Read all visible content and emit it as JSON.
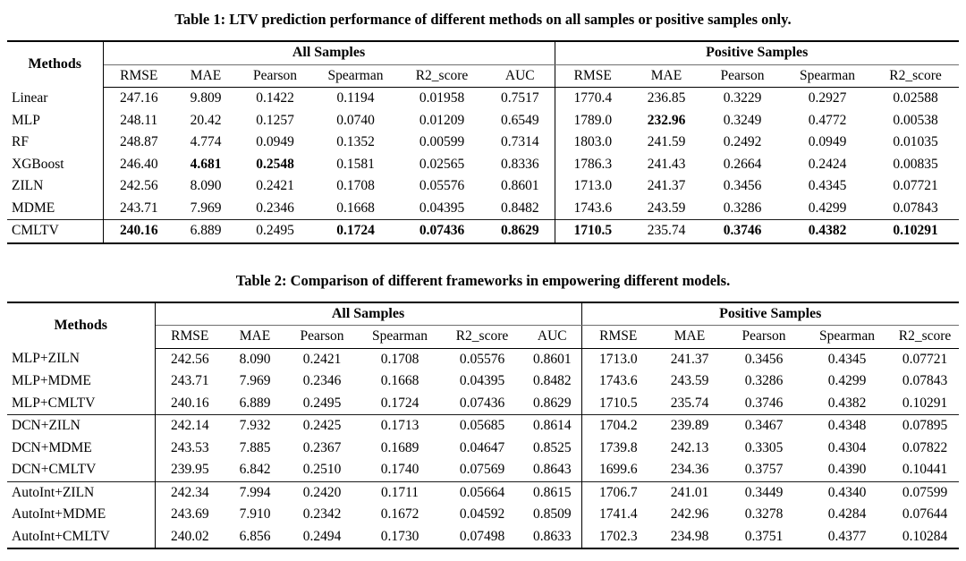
{
  "page": {
    "background_color": "#ffffff",
    "text_color": "#000000"
  },
  "table1": {
    "caption": "Table 1: LTV prediction performance of different methods on all samples or positive samples only.",
    "methods_header": "Methods",
    "groups": [
      {
        "label": "All Samples",
        "columns": [
          "RMSE",
          "MAE",
          "Pearson",
          "Spearman",
          "R2_score",
          "AUC"
        ]
      },
      {
        "label": "Positive Samples",
        "columns": [
          "RMSE",
          "MAE",
          "Pearson",
          "Spearman",
          "R2_score"
        ]
      }
    ],
    "rows": [
      {
        "method": "Linear",
        "values": [
          "247.16",
          "9.809",
          "0.1422",
          "0.1194",
          "0.01958",
          "0.7517",
          "1770.4",
          "236.85",
          "0.3229",
          "0.2927",
          "0.02588"
        ],
        "bold": []
      },
      {
        "method": "MLP",
        "values": [
          "248.11",
          "20.42",
          "0.1257",
          "0.0740",
          "0.01209",
          "0.6549",
          "1789.0",
          "232.96",
          "0.3249",
          "0.4772",
          "0.00538"
        ],
        "bold": [
          7
        ]
      },
      {
        "method": "RF",
        "values": [
          "248.87",
          "4.774",
          "0.0949",
          "0.1352",
          "0.00599",
          "0.7314",
          "1803.0",
          "241.59",
          "0.2492",
          "0.0949",
          "0.01035"
        ],
        "bold": []
      },
      {
        "method": "XGBoost",
        "values": [
          "246.40",
          "4.681",
          "0.2548",
          "0.1581",
          "0.02565",
          "0.8336",
          "1786.3",
          "241.43",
          "0.2664",
          "0.2424",
          "0.00835"
        ],
        "bold": [
          1,
          2
        ]
      },
      {
        "method": "ZILN",
        "values": [
          "242.56",
          "8.090",
          "0.2421",
          "0.1708",
          "0.05576",
          "0.8601",
          "1713.0",
          "241.37",
          "0.3456",
          "0.4345",
          "0.07721"
        ],
        "bold": []
      },
      {
        "method": "MDME",
        "values": [
          "243.71",
          "7.969",
          "0.2346",
          "0.1668",
          "0.04395",
          "0.8482",
          "1743.6",
          "243.59",
          "0.3286",
          "0.4299",
          "0.07843"
        ],
        "bold": []
      },
      {
        "method": "CMLTV",
        "values": [
          "240.16",
          "6.889",
          "0.2495",
          "0.1724",
          "0.07436",
          "0.8629",
          "1710.5",
          "235.74",
          "0.3746",
          "0.4382",
          "0.10291"
        ],
        "bold": [
          0,
          3,
          4,
          5,
          6,
          8,
          9,
          10
        ],
        "separator_above": true
      }
    ]
  },
  "table2": {
    "caption": "Table 2: Comparison of different frameworks in empowering different models.",
    "methods_header": "Methods",
    "groups": [
      {
        "label": "All Samples",
        "columns": [
          "RMSE",
          "MAE",
          "Pearson",
          "Spearman",
          "R2_score",
          "AUC"
        ]
      },
      {
        "label": "Positive Samples",
        "columns": [
          "RMSE",
          "MAE",
          "Pearson",
          "Spearman",
          "R2_score"
        ]
      }
    ],
    "rows": [
      {
        "method": "MLP+ZILN",
        "values": [
          "242.56",
          "8.090",
          "0.2421",
          "0.1708",
          "0.05576",
          "0.8601",
          "1713.0",
          "241.37",
          "0.3456",
          "0.4345",
          "0.07721"
        ],
        "bold": []
      },
      {
        "method": "MLP+MDME",
        "values": [
          "243.71",
          "7.969",
          "0.2346",
          "0.1668",
          "0.04395",
          "0.8482",
          "1743.6",
          "243.59",
          "0.3286",
          "0.4299",
          "0.07843"
        ],
        "bold": []
      },
      {
        "method": "MLP+CMLTV",
        "values": [
          "240.16",
          "6.889",
          "0.2495",
          "0.1724",
          "0.07436",
          "0.8629",
          "1710.5",
          "235.74",
          "0.3746",
          "0.4382",
          "0.10291"
        ],
        "bold": []
      },
      {
        "method": "DCN+ZILN",
        "values": [
          "242.14",
          "7.932",
          "0.2425",
          "0.1713",
          "0.05685",
          "0.8614",
          "1704.2",
          "239.89",
          "0.3467",
          "0.4348",
          "0.07895"
        ],
        "bold": [],
        "separator_above": true
      },
      {
        "method": "DCN+MDME",
        "values": [
          "243.53",
          "7.885",
          "0.2367",
          "0.1689",
          "0.04647",
          "0.8525",
          "1739.8",
          "242.13",
          "0.3305",
          "0.4304",
          "0.07822"
        ],
        "bold": []
      },
      {
        "method": "DCN+CMLTV",
        "values": [
          "239.95",
          "6.842",
          "0.2510",
          "0.1740",
          "0.07569",
          "0.8643",
          "1699.6",
          "234.36",
          "0.3757",
          "0.4390",
          "0.10441"
        ],
        "bold": []
      },
      {
        "method": "AutoInt+ZILN",
        "values": [
          "242.34",
          "7.994",
          "0.2420",
          "0.1711",
          "0.05664",
          "0.8615",
          "1706.7",
          "241.01",
          "0.3449",
          "0.4340",
          "0.07599"
        ],
        "bold": [],
        "separator_above": true
      },
      {
        "method": "AutoInt+MDME",
        "values": [
          "243.69",
          "7.910",
          "0.2342",
          "0.1672",
          "0.04592",
          "0.8509",
          "1741.4",
          "242.96",
          "0.3278",
          "0.4284",
          "0.07644"
        ],
        "bold": []
      },
      {
        "method": "AutoInt+CMLTV",
        "values": [
          "240.02",
          "6.856",
          "0.2494",
          "0.1730",
          "0.07498",
          "0.8633",
          "1702.3",
          "234.98",
          "0.3751",
          "0.4377",
          "0.10284"
        ],
        "bold": []
      }
    ]
  }
}
